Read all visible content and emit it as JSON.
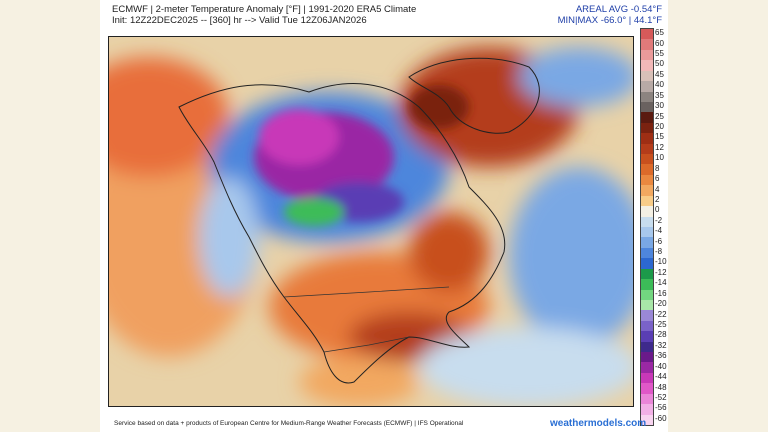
{
  "header": {
    "line1": "ECMWF | 2-meter Temperature Anomaly [°F] | 1991-2020 ERA5 Climate",
    "line2": "Init: 12Z22DEC2025 -- [360] hr --> Valid Tue 12Z06JAN2026",
    "avg": "AREAL AVG -0.54°F",
    "minmax": "MIN|MAX -66.0° | 44.1°F"
  },
  "colorbar": {
    "ticks": [
      "65",
      "60",
      "55",
      "50",
      "45",
      "40",
      "35",
      "30",
      "25",
      "20",
      "15",
      "12",
      "10",
      "8",
      "6",
      "4",
      "2",
      "0",
      "-2",
      "-4",
      "-6",
      "-8",
      "-10",
      "-12",
      "-14",
      "-16",
      "-20",
      "-22",
      "-25",
      "-28",
      "-32",
      "-36",
      "-40",
      "-44",
      "-48",
      "-52",
      "-56",
      "-60"
    ],
    "colors": [
      "#d65a5a",
      "#e07a7a",
      "#ea9a9a",
      "#f2b8b8",
      "#d8c0b8",
      "#b8aaa6",
      "#8c8480",
      "#6a6260",
      "#5a1a10",
      "#7a2210",
      "#9e2e14",
      "#b43c1a",
      "#c8501e",
      "#dc6a2a",
      "#ea8840",
      "#f2a860",
      "#f8cc88",
      "#f4f0e4",
      "#c8ddee",
      "#a8c8ec",
      "#7aa8e4",
      "#4e86dc",
      "#2c68d0",
      "#1c9a4a",
      "#3cbc58",
      "#72d680",
      "#a8e6a8",
      "#9a88d6",
      "#7a62c8",
      "#5a3eb4",
      "#3e2a8c",
      "#6a1a8a",
      "#9a28a4",
      "#c838b8",
      "#e058c8",
      "#ea86d8",
      "#f2b0e6",
      "#f8d4f0"
    ]
  },
  "map": {
    "alt": "North America 2-meter temperature anomaly forecast map"
  },
  "footer": {
    "credit": "Service based on data + products of European Centre for Medium-Range Weather Forecasts (ECMWF) | IFS Operational",
    "brand": "weathermodels.com"
  }
}
